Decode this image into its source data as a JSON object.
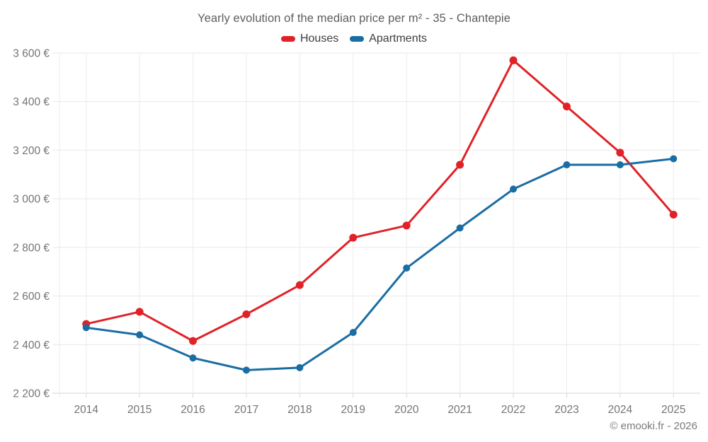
{
  "header": {
    "title": "Yearly evolution of the median price per m² - 35 - Chantepie"
  },
  "chart_data": {
    "type": "line",
    "title": "Yearly evolution of the median price per m² - 35 - Chantepie",
    "categories": [
      "2014",
      "2015",
      "2016",
      "2017",
      "2018",
      "2019",
      "2020",
      "2021",
      "2022",
      "2023",
      "2024",
      "2025"
    ],
    "series": [
      {
        "name": "Houses",
        "color": "#e02228",
        "values": [
          2485,
          2535,
          2415,
          2525,
          2645,
          2840,
          2890,
          3140,
          3570,
          3380,
          3190,
          2935
        ]
      },
      {
        "name": "Apartments",
        "color": "#1a6da3",
        "values": [
          2470,
          2440,
          2345,
          2295,
          2305,
          2450,
          2715,
          2880,
          3040,
          3140,
          3140,
          3165
        ]
      }
    ],
    "ylim": [
      2200,
      3600
    ],
    "ytick_step": 200,
    "ytick_suffix": " €",
    "xlabel": "",
    "ylabel": "",
    "grid": true,
    "legend_position": "top"
  },
  "footer": {
    "copyright": "© emooki.fr - 2026"
  }
}
